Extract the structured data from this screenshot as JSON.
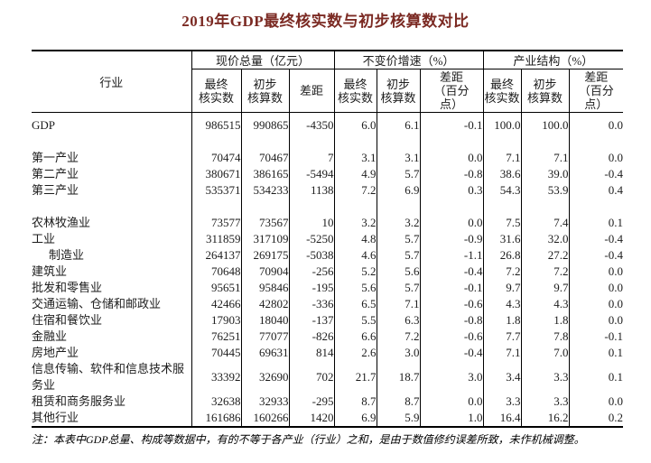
{
  "title": "2019年GDP最终核实数与初步核算数对比",
  "title_color": "#7b2a23",
  "note": "注：本表中GDP总量、构成等数据中，有的不等于各产业（行业）之和，是由于数值修约误差所致，未作机械调整。",
  "table": {
    "row_header": "行业",
    "groups": [
      {
        "label": "现价总量（亿元）",
        "sub": [
          "最终\n核实数",
          "初步\n核算数",
          "差距"
        ]
      },
      {
        "label": "不变价增速（%）",
        "sub": [
          "最终\n核实数",
          "初步\n核算数",
          "差距\n（百分\n点）"
        ]
      },
      {
        "label": "产业结构（%）",
        "sub": [
          "最终\n核实数",
          "初步\n核算数",
          "差距\n（百分\n点）"
        ]
      }
    ],
    "rows": [
      {
        "label": "GDP",
        "values": [
          "986515",
          "990865",
          "-4350",
          "6.0",
          "6.1",
          "-0.1",
          "100.0",
          "100.0",
          "0.0"
        ]
      },
      {
        "label": "",
        "spacer": true,
        "values": [
          "",
          "",
          "",
          "",
          "",
          "",
          "",
          "",
          ""
        ]
      },
      {
        "label": "第一产业",
        "values": [
          "70474",
          "70467",
          "7",
          "3.1",
          "3.1",
          "0.0",
          "7.1",
          "7.1",
          "0.0"
        ]
      },
      {
        "label": "第二产业",
        "values": [
          "380671",
          "386165",
          "-5494",
          "4.9",
          "5.7",
          "-0.8",
          "38.6",
          "39.0",
          "-0.4"
        ]
      },
      {
        "label": "第三产业",
        "values": [
          "535371",
          "534233",
          "1138",
          "7.2",
          "6.9",
          "0.3",
          "54.3",
          "53.9",
          "0.4"
        ]
      },
      {
        "label": "",
        "spacer": true,
        "values": [
          "",
          "",
          "",
          "",
          "",
          "",
          "",
          "",
          ""
        ]
      },
      {
        "label": "农林牧渔业",
        "values": [
          "73577",
          "73567",
          "10",
          "3.2",
          "3.2",
          "0.0",
          "7.5",
          "7.4",
          "0.1"
        ]
      },
      {
        "label": "工业",
        "values": [
          "311859",
          "317109",
          "-5250",
          "4.8",
          "5.7",
          "-0.9",
          "31.6",
          "32.0",
          "-0.4"
        ]
      },
      {
        "label": "制造业",
        "indent": true,
        "values": [
          "264137",
          "269175",
          "-5038",
          "4.6",
          "5.7",
          "-1.1",
          "26.8",
          "27.2",
          "-0.4"
        ]
      },
      {
        "label": "建筑业",
        "values": [
          "70648",
          "70904",
          "-256",
          "5.2",
          "5.6",
          "-0.4",
          "7.2",
          "7.2",
          "0.0"
        ]
      },
      {
        "label": "批发和零售业",
        "values": [
          "95651",
          "95846",
          "-195",
          "5.6",
          "5.7",
          "-0.1",
          "9.7",
          "9.7",
          "0.0"
        ]
      },
      {
        "label": "交通运输、仓储和邮政业",
        "values": [
          "42466",
          "42802",
          "-336",
          "6.5",
          "7.1",
          "-0.6",
          "4.3",
          "4.3",
          "0.0"
        ]
      },
      {
        "label": "住宿和餐饮业",
        "values": [
          "17903",
          "18040",
          "-137",
          "5.5",
          "6.3",
          "-0.8",
          "1.8",
          "1.8",
          "0.0"
        ]
      },
      {
        "label": "金融业",
        "values": [
          "76251",
          "77077",
          "-826",
          "6.6",
          "7.2",
          "-0.6",
          "7.7",
          "7.8",
          "-0.1"
        ]
      },
      {
        "label": "房地产业",
        "values": [
          "70445",
          "69631",
          "814",
          "2.6",
          "3.0",
          "-0.4",
          "7.1",
          "7.0",
          "0.1"
        ]
      },
      {
        "label": "信息传输、软件和信息技术服务业",
        "tall": true,
        "values": [
          "33392",
          "32690",
          "702",
          "21.7",
          "18.7",
          "3.0",
          "3.4",
          "3.3",
          "0.1"
        ]
      },
      {
        "label": "租赁和商务服务业",
        "values": [
          "32638",
          "32933",
          "-295",
          "8.7",
          "8.7",
          "0.0",
          "3.3",
          "3.3",
          "0.0"
        ]
      },
      {
        "label": "其他行业",
        "values": [
          "161686",
          "160266",
          "1420",
          "6.9",
          "5.9",
          "1.0",
          "16.4",
          "16.2",
          "0.2"
        ]
      }
    ]
  }
}
